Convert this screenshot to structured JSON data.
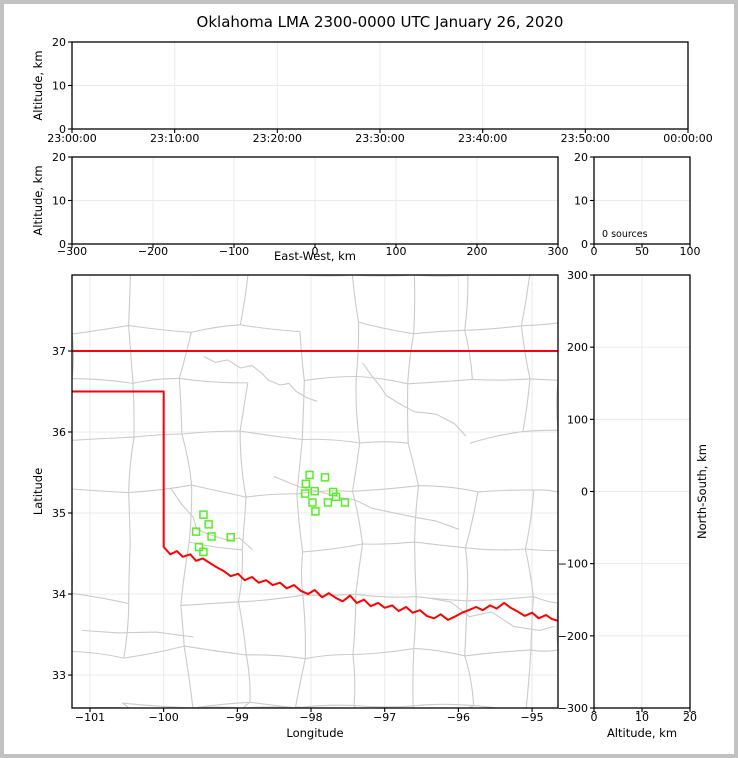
{
  "title": "Oklahoma LMA 2300-0000 UTC January 26, 2020",
  "colors": {
    "state_border": "#ff0000",
    "county_line": "#cbcbcb",
    "river_line": "#cbcbcb",
    "source_marker": "#55ee22",
    "grid": "#ebebeb",
    "axis": "#000000",
    "outer_frame": "#c2c2c2",
    "background": "#ffffff"
  },
  "chart_data": [
    {
      "id": "time_height",
      "type": "scatter",
      "xlabel": "",
      "ylabel": "Altitude, km",
      "xlim": [
        0,
        3600
      ],
      "ylim": [
        0,
        20
      ],
      "xticks": {
        "values": [
          0,
          600,
          1200,
          1800,
          2400,
          3000,
          3600
        ],
        "labels": [
          "23:00:00",
          "23:10:00",
          "23:20:00",
          "23:30:00",
          "23:40:00",
          "23:50:00",
          "00:00:00"
        ]
      },
      "yticks": {
        "values": [
          0,
          10,
          20
        ],
        "labels": [
          "0",
          "10",
          "20"
        ]
      },
      "grid": true,
      "points": []
    },
    {
      "id": "ew_height",
      "type": "scatter",
      "xlabel": "East-West, km",
      "ylabel": "Altitude, km",
      "xlim": [
        -300,
        300
      ],
      "ylim": [
        0,
        20
      ],
      "xticks": {
        "values": [
          -300,
          -200,
          -100,
          0,
          100,
          200,
          300
        ],
        "labels": [
          "−300",
          "−200",
          "−100",
          "0",
          "100",
          "200",
          "300"
        ]
      },
      "yticks": {
        "values": [
          0,
          10,
          20
        ],
        "labels": [
          "0",
          "10",
          "20"
        ]
      },
      "grid": true,
      "points": []
    },
    {
      "id": "source_count_hist",
      "type": "line",
      "annotation": "0 sources",
      "xlabel": "",
      "ylabel": "",
      "xlim": [
        0,
        100
      ],
      "ylim": [
        0,
        20
      ],
      "xticks": {
        "values": [
          0,
          50,
          100
        ],
        "labels": [
          "0",
          "50",
          "100"
        ]
      },
      "yticks": {
        "values": [
          0,
          10,
          20
        ],
        "labels": [
          "0",
          "10",
          "20"
        ]
      },
      "grid": true,
      "points": []
    },
    {
      "id": "plan_view_map",
      "type": "map",
      "xlabel": "Longitude",
      "ylabel": "Latitude",
      "xlim": [
        -101.244,
        -94.648
      ],
      "ylim": [
        32.593,
        37.938
      ],
      "xticks": {
        "values": [
          -101,
          -100,
          -99,
          -98,
          -97,
          -96,
          -95
        ],
        "labels": [
          "−101",
          "−100",
          "−99",
          "−98",
          "−97",
          "−96",
          "−95"
        ]
      },
      "yticks": {
        "values": [
          33,
          34,
          35,
          36,
          37
        ],
        "labels": [
          "33",
          "34",
          "35",
          "36",
          "37"
        ]
      },
      "grid": true,
      "sources": [
        [
          -99.46,
          34.98
        ],
        [
          -99.39,
          34.86
        ],
        [
          -99.56,
          34.77
        ],
        [
          -99.35,
          34.71
        ],
        [
          -99.09,
          34.7
        ],
        [
          -99.52,
          34.58
        ],
        [
          -99.46,
          34.52
        ],
        [
          -98.02,
          35.47
        ],
        [
          -97.81,
          35.44
        ],
        [
          -98.07,
          35.36
        ],
        [
          -98.08,
          35.24
        ],
        [
          -97.95,
          35.27
        ],
        [
          -97.7,
          35.26
        ],
        [
          -97.66,
          35.2
        ],
        [
          -97.98,
          35.13
        ],
        [
          -97.77,
          35.13
        ],
        [
          -97.54,
          35.13
        ],
        [
          -97.94,
          35.02
        ]
      ],
      "state_border": {
        "kansas_line": [
          [
            -101.244,
            37.0
          ],
          [
            -94.648,
            37.0
          ]
        ],
        "panhandle_and_red_river": [
          [
            -101.244,
            36.5
          ],
          [
            -100.0,
            36.5
          ],
          [
            -100.0,
            34.58
          ],
          [
            -99.91,
            34.49
          ],
          [
            -99.82,
            34.53
          ],
          [
            -99.74,
            34.46
          ],
          [
            -99.64,
            34.49
          ],
          [
            -99.56,
            34.41
          ],
          [
            -99.47,
            34.44
          ],
          [
            -99.37,
            34.38
          ],
          [
            -99.28,
            34.33
          ],
          [
            -99.18,
            34.28
          ],
          [
            -99.09,
            34.22
          ],
          [
            -98.99,
            34.25
          ],
          [
            -98.9,
            34.17
          ],
          [
            -98.8,
            34.21
          ],
          [
            -98.71,
            34.14
          ],
          [
            -98.61,
            34.17
          ],
          [
            -98.52,
            34.11
          ],
          [
            -98.42,
            34.14
          ],
          [
            -98.33,
            34.07
          ],
          [
            -98.23,
            34.11
          ],
          [
            -98.14,
            34.04
          ],
          [
            -98.04,
            34.0
          ],
          [
            -97.95,
            34.05
          ],
          [
            -97.85,
            33.96
          ],
          [
            -97.76,
            34.01
          ],
          [
            -97.66,
            33.95
          ],
          [
            -97.57,
            33.91
          ],
          [
            -97.47,
            33.98
          ],
          [
            -97.38,
            33.89
          ],
          [
            -97.28,
            33.93
          ],
          [
            -97.19,
            33.85
          ],
          [
            -97.09,
            33.89
          ],
          [
            -97.0,
            33.83
          ],
          [
            -96.9,
            33.86
          ],
          [
            -96.81,
            33.79
          ],
          [
            -96.71,
            33.84
          ],
          [
            -96.62,
            33.77
          ],
          [
            -96.52,
            33.8
          ],
          [
            -96.43,
            33.73
          ],
          [
            -96.33,
            33.7
          ],
          [
            -96.24,
            33.75
          ],
          [
            -96.14,
            33.68
          ],
          [
            -96.05,
            33.72
          ],
          [
            -95.95,
            33.77
          ],
          [
            -95.86,
            33.8
          ],
          [
            -95.76,
            33.84
          ],
          [
            -95.67,
            33.8
          ],
          [
            -95.57,
            33.86
          ],
          [
            -95.48,
            33.82
          ],
          [
            -95.38,
            33.89
          ],
          [
            -95.29,
            33.83
          ],
          [
            -95.19,
            33.78
          ],
          [
            -95.1,
            33.73
          ],
          [
            -95.0,
            33.77
          ],
          [
            -94.91,
            33.7
          ],
          [
            -94.81,
            33.74
          ],
          [
            -94.73,
            33.69
          ],
          [
            -94.648,
            33.67
          ]
        ]
      },
      "rivers": [
        [
          [
            -99.45,
            36.93
          ],
          [
            -99.3,
            36.86
          ],
          [
            -99.13,
            36.89
          ],
          [
            -98.96,
            36.79
          ],
          [
            -98.8,
            36.82
          ],
          [
            -98.66,
            36.72
          ],
          [
            -98.58,
            36.64
          ],
          [
            -98.42,
            36.58
          ],
          [
            -98.3,
            36.6
          ],
          [
            -98.2,
            36.5
          ],
          [
            -98.05,
            36.42
          ],
          [
            -97.92,
            36.38
          ]
        ],
        [
          [
            -97.3,
            36.85
          ],
          [
            -97.18,
            36.7
          ],
          [
            -97.05,
            36.55
          ],
          [
            -96.98,
            36.45
          ],
          [
            -96.8,
            36.35
          ],
          [
            -96.6,
            36.25
          ],
          [
            -96.3,
            36.22
          ],
          [
            -96.05,
            36.1
          ],
          [
            -95.9,
            35.95
          ]
        ],
        [
          [
            -98.5,
            35.45
          ],
          [
            -98.15,
            35.32
          ],
          [
            -97.88,
            35.26
          ],
          [
            -97.6,
            35.19
          ],
          [
            -97.4,
            35.16
          ],
          [
            -97.18,
            35.06
          ],
          [
            -96.92,
            35.01
          ],
          [
            -96.6,
            34.95
          ],
          [
            -96.3,
            34.9
          ],
          [
            -96.0,
            34.8
          ]
        ],
        [
          [
            -99.9,
            35.3
          ],
          [
            -99.75,
            35.1
          ],
          [
            -99.6,
            34.95
          ],
          [
            -99.55,
            34.8
          ],
          [
            -99.37,
            34.73
          ],
          [
            -99.15,
            34.67
          ],
          [
            -98.97,
            34.69
          ],
          [
            -98.8,
            34.55
          ]
        ],
        [
          [
            -101.1,
            33.55
          ],
          [
            -100.6,
            33.52
          ],
          [
            -100.1,
            33.53
          ],
          [
            -99.6,
            33.47
          ]
        ],
        [
          [
            -96.4,
            33.95
          ],
          [
            -96.1,
            33.9
          ],
          [
            -95.85,
            33.72
          ],
          [
            -95.55,
            33.78
          ],
          [
            -95.25,
            33.6
          ],
          [
            -94.9,
            33.55
          ],
          [
            -94.7,
            33.6
          ]
        ]
      ]
    },
    {
      "id": "ns_height",
      "type": "scatter",
      "xlabel": "Altitude, km",
      "ylabel_right": "North-South, km",
      "xlim": [
        0,
        20
      ],
      "ylim": [
        -300,
        300
      ],
      "xticks": {
        "values": [
          0,
          10,
          20
        ],
        "labels": [
          "0",
          "10",
          "20"
        ]
      },
      "yticks": {
        "values": [
          -300,
          -200,
          -100,
          0,
          100,
          200,
          300
        ],
        "labels": [
          "−300",
          "−200",
          "−100",
          "0",
          "100",
          "200",
          "300"
        ]
      },
      "grid": true,
      "points": []
    }
  ]
}
